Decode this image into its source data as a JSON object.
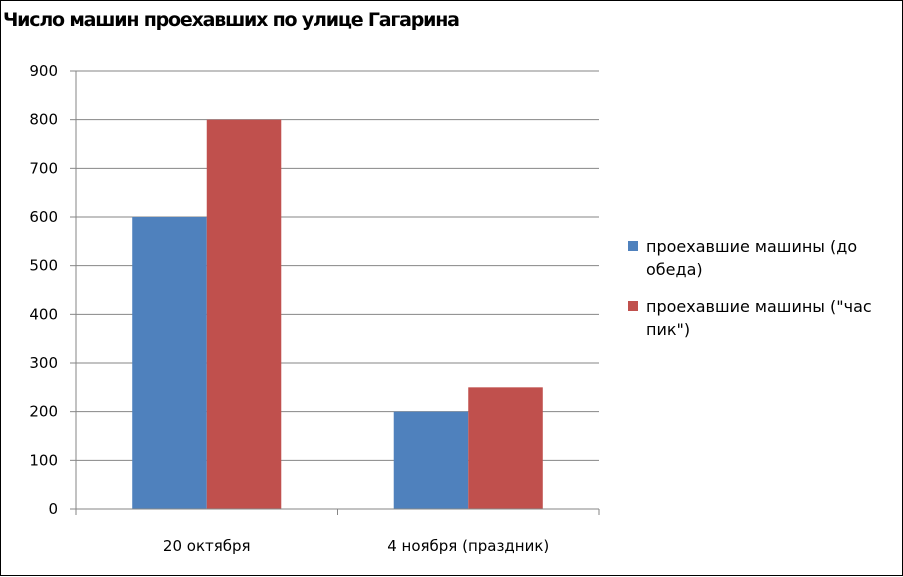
{
  "chart_data": {
    "type": "bar",
    "title": "Число машин проехавших по улице Гагарина",
    "categories": [
      "20 октября",
      "4 ноября (праздник)"
    ],
    "series": [
      {
        "name": "проехавшие машины (до обеда)",
        "values": [
          600,
          200
        ],
        "color": "#4f81bd"
      },
      {
        "name": "проехавшие машины (\"час пик\")",
        "values": [
          800,
          250
        ],
        "color": "#c0504d"
      }
    ],
    "ylim": [
      0,
      900
    ],
    "yticks": [
      0,
      100,
      200,
      300,
      400,
      500,
      600,
      700,
      800,
      900
    ],
    "grid": true,
    "legend_position": "right"
  }
}
